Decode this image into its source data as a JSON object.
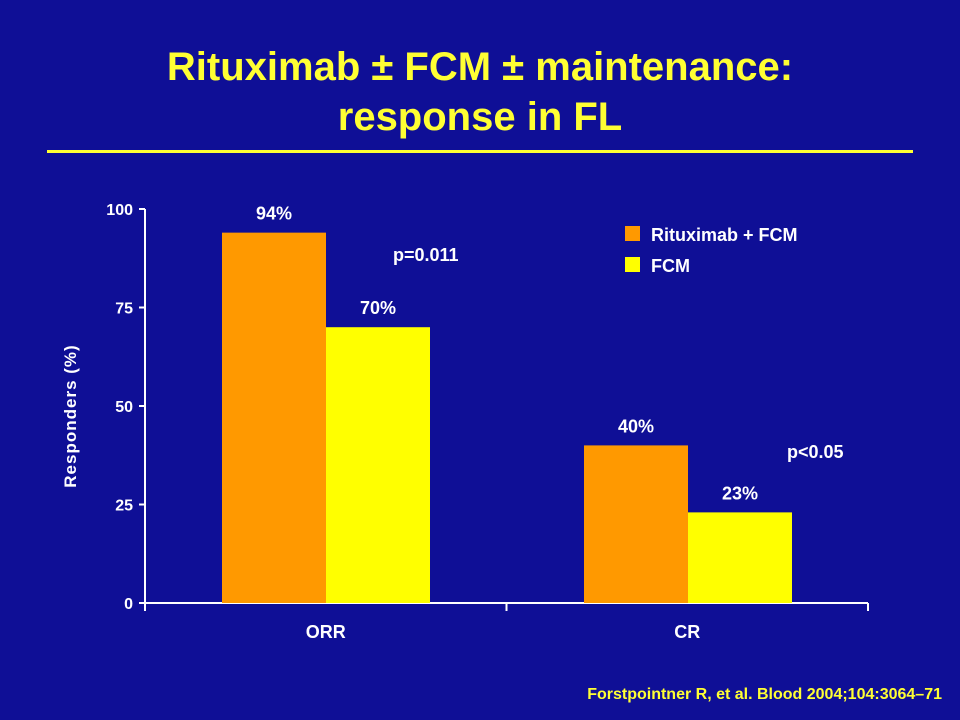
{
  "slide": {
    "title_line1": "Rituximab ± FCM ± maintenance:",
    "title_line2": "response in FL",
    "citation": "Forstpointner R, et al. Blood 2004;104:3064–71"
  },
  "colors": {
    "background": "#0f0f96",
    "title": "#ffff33",
    "text": "#ffffff",
    "rituximab_fcm": "#ff9900",
    "fcm": "#ffff00"
  },
  "chart_data": {
    "type": "bar",
    "categories": [
      "ORR",
      "CR"
    ],
    "series": [
      {
        "name": "Rituximab + FCM",
        "values": [
          94,
          40
        ],
        "labels": [
          "94%",
          "40%"
        ],
        "color": "#ff9900"
      },
      {
        "name": "FCM",
        "values": [
          70,
          23
        ],
        "labels": [
          "70%",
          "23%"
        ],
        "color": "#ffff00"
      }
    ],
    "ylabel": "Responders (%)",
    "xlabel": "",
    "ylim": [
      0,
      100
    ],
    "yticks": [
      0,
      25,
      50,
      75,
      100
    ],
    "annotations": [
      "p=0.011",
      "p<0.05"
    ],
    "legend_position": "top-right",
    "grid": false
  }
}
